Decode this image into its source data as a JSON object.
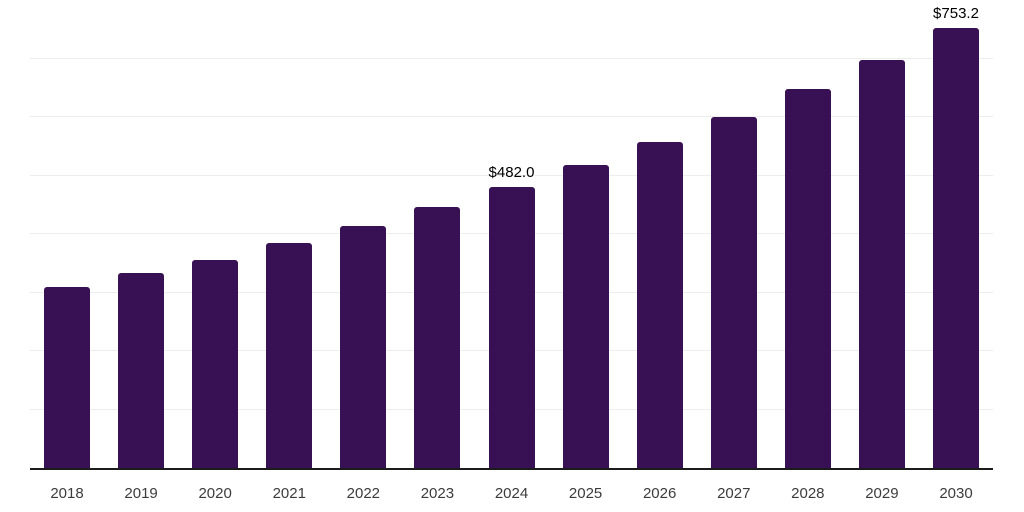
{
  "chart_data": {
    "type": "bar",
    "title": "",
    "xlabel": "",
    "ylabel": "",
    "categories": [
      "2018",
      "2019",
      "2020",
      "2021",
      "2022",
      "2023",
      "2024",
      "2025",
      "2026",
      "2027",
      "2028",
      "2029",
      "2030"
    ],
    "values": [
      311.0,
      334.5,
      358.0,
      385.5,
      415.0,
      447.5,
      482.0,
      519.2,
      559.3,
      602.5,
      649.0,
      699.1,
      753.2
    ],
    "data_labels": [
      null,
      null,
      null,
      null,
      null,
      null,
      "$482.0",
      null,
      null,
      null,
      null,
      null,
      "$753.2"
    ],
    "ylim": [
      0,
      800
    ],
    "gridline_step": 100,
    "grid": true,
    "legend": false,
    "bar_color": "#371153",
    "axis_line_color": "#1c1c1c",
    "gridline_color": "#ededed",
    "tick_label_color": "#3c3c3c",
    "data_label_color": "#000000"
  }
}
